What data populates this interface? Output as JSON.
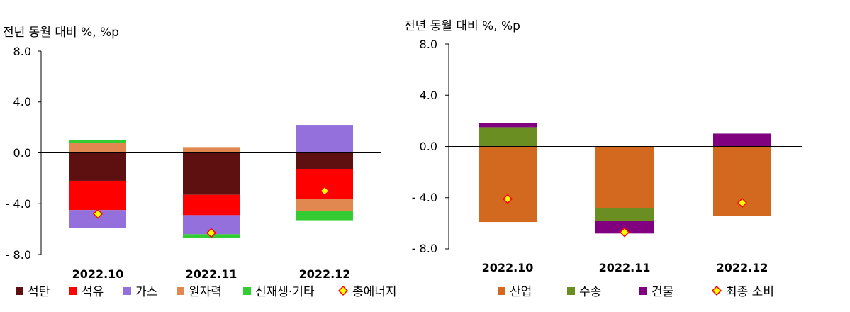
{
  "chart_data": [
    {
      "type": "bar",
      "stacked": true,
      "ylabel": "전년 동월 대비 %, %p",
      "ylim": [
        -8.0,
        8.0
      ],
      "yticks": [
        "8.0",
        "4.0",
        "0.0",
        "- 4.0",
        "- 8.0"
      ],
      "ytick_values": [
        8,
        4,
        0,
        -4,
        -8
      ],
      "categories": [
        "2022.10",
        "2022.11",
        "2022.12"
      ],
      "series": [
        {
          "name": "석탄",
          "color": "#5e0f10",
          "values": [
            -2.2,
            -3.3,
            -1.3
          ]
        },
        {
          "name": "석유",
          "color": "#ff0000",
          "values": [
            -2.3,
            -1.6,
            -2.3
          ]
        },
        {
          "name": "가스",
          "color": "#9370db",
          "values": [
            -1.4,
            -1.5,
            2.2
          ]
        },
        {
          "name": "원자력",
          "color": "#e08850",
          "values": [
            0.8,
            0.4,
            -1.0
          ]
        },
        {
          "name": "신재생·기타",
          "color": "#33cc33",
          "values": [
            0.2,
            -0.3,
            -0.7
          ]
        }
      ],
      "markers": {
        "name": "총에너지",
        "values": [
          -4.8,
          -6.3,
          -3.0
        ]
      },
      "legend": "bottom"
    },
    {
      "type": "bar",
      "stacked": true,
      "ylabel": "전년 동월 대비 %, %p",
      "ylim": [
        -8.0,
        8.0
      ],
      "yticks": [
        "8.0",
        "4.0",
        "0.0",
        "- 4.0",
        "- 8.0"
      ],
      "ytick_values": [
        8,
        4,
        0,
        -4,
        -8
      ],
      "categories": [
        "2022.10",
        "2022.11",
        "2022.12"
      ],
      "series": [
        {
          "name": "산업",
          "color": "#d2691e",
          "values": [
            -5.9,
            -4.8,
            -5.4
          ]
        },
        {
          "name": "수송",
          "color": "#6b8e23",
          "values": [
            1.5,
            -1.0,
            0.0
          ]
        },
        {
          "name": "건물",
          "color": "#800080",
          "values": [
            0.3,
            -1.0,
            1.0
          ]
        }
      ],
      "markers": {
        "name": "최종 소비",
        "values": [
          -4.1,
          -6.7,
          -4.4
        ]
      },
      "legend": "bottom"
    }
  ],
  "marker_colors": {
    "fill": "#ffff00",
    "stroke": "#ff0000"
  }
}
